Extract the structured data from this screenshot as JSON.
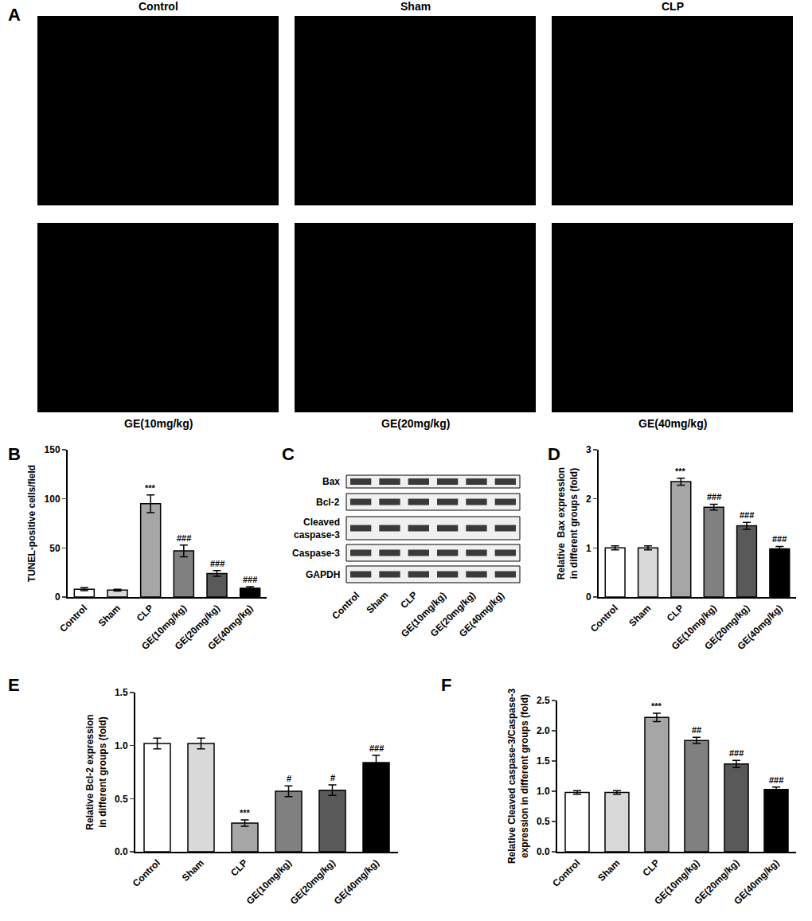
{
  "images": {
    "panel": "A",
    "labels": [
      "Control",
      "Sham",
      "CLP",
      "GE(10mg/kg)",
      "GE(20mg/kg)",
      "GE(40mg/kg)"
    ]
  },
  "blot": {
    "panel": "C",
    "rows": [
      "Bax",
      "Bcl-2",
      "Cleaved\ncaspase-3",
      "Caspase-3",
      "GAPDH"
    ],
    "lanes": [
      "Control",
      "Sham",
      "CLP",
      "GE(10mg/kg)",
      "GE(20mg/kg)",
      "GE(40mg/kg)"
    ]
  },
  "chart_data": [
    {
      "panel": "B",
      "type": "bar",
      "categories": [
        "Control",
        "Sham",
        "CLP",
        "GE(10mg/kg)",
        "GE(20mg/kg)",
        "GE(40mg/kg)"
      ],
      "values": [
        8,
        7,
        95,
        47,
        24,
        9
      ],
      "errors": [
        1.5,
        1,
        9,
        6,
        3,
        1.5
      ],
      "annotations": [
        null,
        null,
        "***",
        "###",
        "###",
        "###"
      ],
      "colors": [
        "#ffffff",
        "#d9d9d9",
        "#a6a6a6",
        "#808080",
        "#595959",
        "#000000"
      ],
      "y_label": "TUNEL-positive cells/field",
      "ylim": [
        0,
        150
      ],
      "yticks": [
        0,
        50,
        100,
        150
      ],
      "grid": false
    },
    {
      "panel": "D",
      "type": "bar",
      "categories": [
        "Control",
        "Sham",
        "CLP",
        "GE(10mg/kg)",
        "GE(20mg/kg)",
        "GE(40mg/kg)"
      ],
      "values": [
        1.0,
        1.0,
        2.35,
        1.83,
        1.45,
        0.98
      ],
      "errors": [
        0.04,
        0.04,
        0.07,
        0.06,
        0.07,
        0.05
      ],
      "annotations": [
        null,
        null,
        "***",
        "###",
        "###",
        "###"
      ],
      "colors": [
        "#ffffff",
        "#d9d9d9",
        "#a6a6a6",
        "#808080",
        "#595959",
        "#000000"
      ],
      "y_label": "Relative  Bax expression\nin different groups (fold)",
      "ylim": [
        0,
        3
      ],
      "yticks": [
        0,
        1,
        2,
        3
      ],
      "grid": false
    },
    {
      "panel": "E",
      "type": "bar",
      "categories": [
        "Control",
        "Sham",
        "CLP",
        "GE(10mg/kg)",
        "GE(20mg/kg)",
        "GE(40mg/kg)"
      ],
      "values": [
        1.02,
        1.02,
        0.27,
        0.57,
        0.58,
        0.84
      ],
      "errors": [
        0.05,
        0.05,
        0.03,
        0.05,
        0.05,
        0.07
      ],
      "annotations": [
        null,
        null,
        "***",
        "#",
        "#",
        "###"
      ],
      "colors": [
        "#ffffff",
        "#d9d9d9",
        "#a6a6a6",
        "#808080",
        "#595959",
        "#000000"
      ],
      "y_label": "Relative Bcl-2 expression\nin different groups (fold)",
      "ylim": [
        0,
        1.5
      ],
      "yticks": [
        {
          "value": 0,
          "label": "0.0"
        },
        0.5,
        {
          "value": 1,
          "label": "1.0"
        },
        1.5
      ],
      "grid": false
    },
    {
      "panel": "F",
      "type": "bar",
      "categories": [
        "Control",
        "Sham",
        "CLP",
        "GE(10mg/kg)",
        "GE(20mg/kg)",
        "GE(40mg/kg)"
      ],
      "values": [
        0.98,
        0.98,
        2.22,
        1.84,
        1.45,
        1.03
      ],
      "errors": [
        0.03,
        0.03,
        0.07,
        0.05,
        0.06,
        0.04
      ],
      "annotations": [
        null,
        null,
        "***",
        "##",
        "###",
        "###"
      ],
      "colors": [
        "#ffffff",
        "#d9d9d9",
        "#a6a6a6",
        "#808080",
        "#595959",
        "#000000"
      ],
      "y_label": "Relative Cleaved caspase-3/Caspase-3\nexpression in different groups (fold)",
      "ylim": [
        0,
        2.5
      ],
      "yticks": [
        {
          "value": 0,
          "label": "0.0"
        },
        0.5,
        {
          "value": 1,
          "label": "1.0"
        },
        1.5,
        {
          "value": 2,
          "label": "2.0"
        },
        2.5
      ],
      "grid": false
    }
  ]
}
